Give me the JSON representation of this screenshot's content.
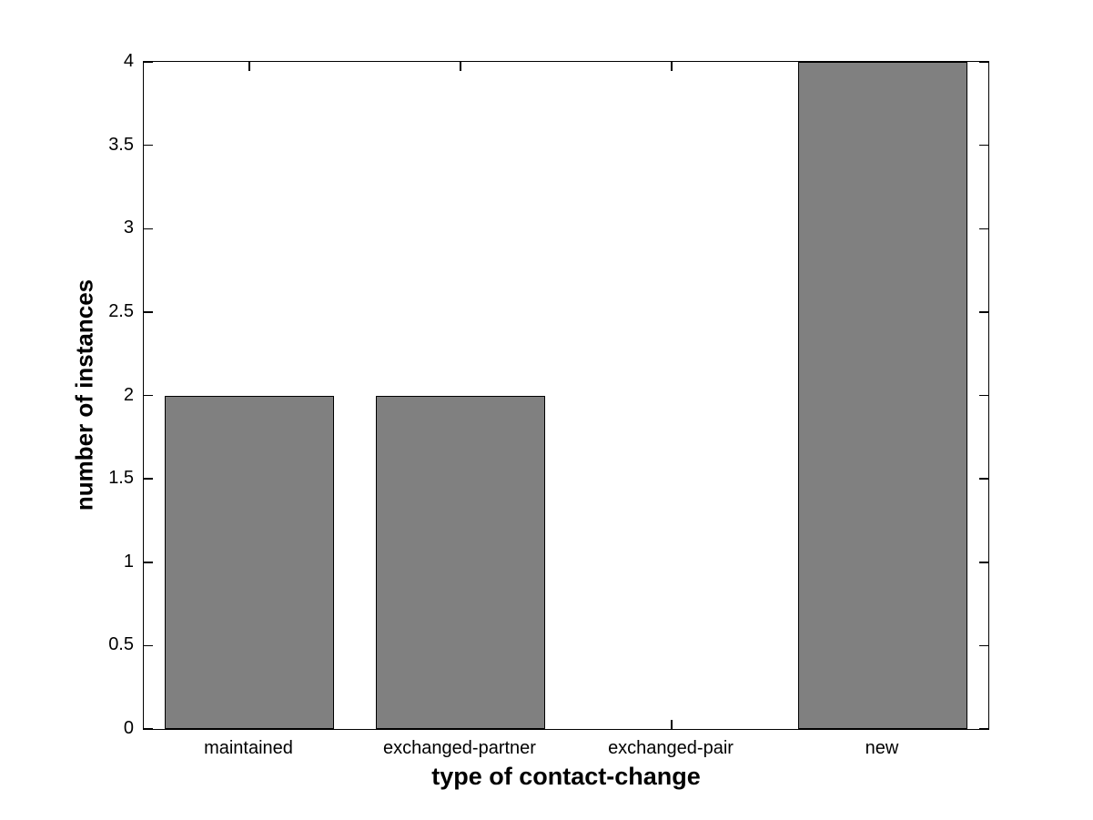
{
  "chart_data": {
    "type": "bar",
    "title": "",
    "xlabel": "type of contact-change",
    "ylabel": "number of instances",
    "categories": [
      "maintained",
      "exchanged-partner",
      "exchanged-pair",
      "new"
    ],
    "values": [
      2,
      2,
      0,
      4
    ],
    "ylim": [
      0,
      4
    ],
    "yticks": [
      0,
      0.5,
      1,
      1.5,
      2,
      2.5,
      3,
      3.5,
      4
    ],
    "ytick_labels": [
      "0",
      "0.5",
      "1",
      "1.5",
      "2",
      "2.5",
      "3",
      "3.5",
      "4"
    ],
    "bar_width_fraction": 0.8,
    "grid": false,
    "legend": null,
    "colors": {
      "bar_fill": "#808080",
      "bar_edge": "#000000",
      "axis": "#000000",
      "background": "#ffffff",
      "text": "#000000"
    }
  }
}
